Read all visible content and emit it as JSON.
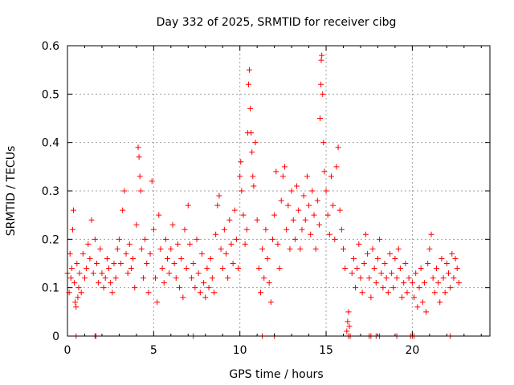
{
  "chart_data": {
    "type": "scatter",
    "title": "Day 332 of 2025, SRMTID for receiver cibg",
    "xlabel": "GPS time / hours",
    "ylabel": "SRMTID / TECUs",
    "xlim": [
      0,
      24.5
    ],
    "ylim": [
      0,
      0.6
    ],
    "x_ticks": [
      0,
      5,
      10,
      15,
      20
    ],
    "x_tick_labels": [
      "0",
      "5",
      "10",
      "15",
      "20"
    ],
    "y_ticks": [
      0,
      0.1,
      0.2,
      0.3,
      0.4,
      0.5,
      0.6
    ],
    "y_tick_labels": [
      "0",
      "0.1",
      "0.2",
      "0.3",
      "0.4",
      "0.5",
      "0.6"
    ],
    "grid": true,
    "marker": "+",
    "series": [
      {
        "name": "SRMTID",
        "color": "#ff0000",
        "points": [
          [
            0.0,
            0.13
          ],
          [
            0.1,
            0.09
          ],
          [
            0.15,
            0.17
          ],
          [
            0.2,
            0.12
          ],
          [
            0.25,
            0.14
          ],
          [
            0.3,
            0.22
          ],
          [
            0.35,
            0.26
          ],
          [
            0.4,
            0.11
          ],
          [
            0.45,
            0.07
          ],
          [
            0.5,
            0.06
          ],
          [
            0.55,
            0.15
          ],
          [
            0.6,
            0.08
          ],
          [
            0.65,
            0.1
          ],
          [
            0.7,
            0.13
          ],
          [
            0.8,
            0.09
          ],
          [
            0.9,
            0.17
          ],
          [
            1.0,
            0.12
          ],
          [
            1.1,
            0.14
          ],
          [
            1.2,
            0.19
          ],
          [
            1.3,
            0.16
          ],
          [
            1.4,
            0.24
          ],
          [
            1.5,
            0.13
          ],
          [
            1.6,
            0.2
          ],
          [
            1.7,
            0.15
          ],
          [
            1.8,
            0.11
          ],
          [
            1.9,
            0.18
          ],
          [
            2.0,
            0.13
          ],
          [
            2.1,
            0.1
          ],
          [
            2.2,
            0.12
          ],
          [
            2.3,
            0.16
          ],
          [
            2.4,
            0.14
          ],
          [
            2.5,
            0.11
          ],
          [
            2.6,
            0.09
          ],
          [
            2.7,
            0.15
          ],
          [
            2.8,
            0.12
          ],
          [
            2.9,
            0.18
          ],
          [
            3.0,
            0.2
          ],
          [
            3.1,
            0.15
          ],
          [
            3.2,
            0.26
          ],
          [
            3.3,
            0.3
          ],
          [
            3.4,
            0.17
          ],
          [
            3.5,
            0.13
          ],
          [
            3.6,
            0.19
          ],
          [
            3.7,
            0.14
          ],
          [
            3.8,
            0.16
          ],
          [
            3.9,
            0.1
          ],
          [
            4.0,
            0.23
          ],
          [
            4.1,
            0.39
          ],
          [
            4.15,
            0.37
          ],
          [
            4.2,
            0.33
          ],
          [
            4.25,
            0.3
          ],
          [
            4.3,
            0.18
          ],
          [
            4.4,
            0.12
          ],
          [
            4.5,
            0.2
          ],
          [
            4.6,
            0.15
          ],
          [
            4.7,
            0.09
          ],
          [
            4.8,
            0.17
          ],
          [
            4.9,
            0.32
          ],
          [
            5.0,
            0.22
          ],
          [
            5.1,
            0.12
          ],
          [
            5.2,
            0.07
          ],
          [
            5.3,
            0.25
          ],
          [
            5.4,
            0.18
          ],
          [
            5.5,
            0.14
          ],
          [
            5.6,
            0.11
          ],
          [
            5.7,
            0.2
          ],
          [
            5.8,
            0.16
          ],
          [
            5.9,
            0.13
          ],
          [
            6.0,
            0.18
          ],
          [
            6.1,
            0.23
          ],
          [
            6.2,
            0.15
          ],
          [
            6.3,
            0.12
          ],
          [
            6.4,
            0.19
          ],
          [
            6.5,
            0.1
          ],
          [
            6.6,
            0.16
          ],
          [
            6.7,
            0.08
          ],
          [
            6.8,
            0.22
          ],
          [
            6.9,
            0.14
          ],
          [
            7.0,
            0.27
          ],
          [
            7.1,
            0.19
          ],
          [
            7.2,
            0.12
          ],
          [
            7.3,
            0.15
          ],
          [
            7.4,
            0.1
          ],
          [
            7.5,
            0.2
          ],
          [
            7.6,
            0.13
          ],
          [
            7.7,
            0.09
          ],
          [
            7.8,
            0.17
          ],
          [
            7.9,
            0.11
          ],
          [
            8.0,
            0.08
          ],
          [
            8.1,
            0.14
          ],
          [
            8.2,
            0.1
          ],
          [
            8.3,
            0.16
          ],
          [
            8.4,
            0.12
          ],
          [
            8.5,
            0.09
          ],
          [
            8.6,
            0.21
          ],
          [
            8.7,
            0.27
          ],
          [
            8.8,
            0.29
          ],
          [
            8.9,
            0.18
          ],
          [
            9.0,
            0.14
          ],
          [
            9.1,
            0.22
          ],
          [
            9.2,
            0.17
          ],
          [
            9.3,
            0.12
          ],
          [
            9.4,
            0.24
          ],
          [
            9.5,
            0.19
          ],
          [
            9.6,
            0.15
          ],
          [
            9.7,
            0.26
          ],
          [
            9.8,
            0.2
          ],
          [
            9.9,
            0.14
          ],
          [
            10.0,
            0.33
          ],
          [
            10.05,
            0.36
          ],
          [
            10.1,
            0.3
          ],
          [
            10.2,
            0.25
          ],
          [
            10.3,
            0.19
          ],
          [
            10.4,
            0.22
          ],
          [
            10.45,
            0.42
          ],
          [
            10.5,
            0.52
          ],
          [
            10.55,
            0.55
          ],
          [
            10.6,
            0.47
          ],
          [
            10.65,
            0.42
          ],
          [
            10.7,
            0.38
          ],
          [
            10.75,
            0.33
          ],
          [
            10.8,
            0.31
          ],
          [
            10.9,
            0.4
          ],
          [
            11.0,
            0.24
          ],
          [
            11.1,
            0.14
          ],
          [
            11.2,
            0.09
          ],
          [
            11.3,
            0.18
          ],
          [
            11.4,
            0.12
          ],
          [
            11.5,
            0.22
          ],
          [
            11.6,
            0.16
          ],
          [
            11.7,
            0.11
          ],
          [
            11.8,
            0.07
          ],
          [
            11.9,
            0.2
          ],
          [
            12.0,
            0.25
          ],
          [
            12.1,
            0.34
          ],
          [
            12.2,
            0.19
          ],
          [
            12.3,
            0.14
          ],
          [
            12.4,
            0.28
          ],
          [
            12.5,
            0.33
          ],
          [
            12.6,
            0.35
          ],
          [
            12.7,
            0.22
          ],
          [
            12.8,
            0.27
          ],
          [
            12.9,
            0.18
          ],
          [
            13.0,
            0.3
          ],
          [
            13.1,
            0.24
          ],
          [
            13.2,
            0.2
          ],
          [
            13.3,
            0.31
          ],
          [
            13.4,
            0.26
          ],
          [
            13.5,
            0.18
          ],
          [
            13.6,
            0.22
          ],
          [
            13.7,
            0.29
          ],
          [
            13.8,
            0.24
          ],
          [
            13.9,
            0.33
          ],
          [
            14.0,
            0.27
          ],
          [
            14.1,
            0.21
          ],
          [
            14.2,
            0.3
          ],
          [
            14.3,
            0.25
          ],
          [
            14.4,
            0.18
          ],
          [
            14.5,
            0.28
          ],
          [
            14.6,
            0.23
          ],
          [
            14.65,
            0.45
          ],
          [
            14.7,
            0.52
          ],
          [
            14.72,
            0.57
          ],
          [
            14.75,
            0.58
          ],
          [
            14.8,
            0.5
          ],
          [
            14.85,
            0.4
          ],
          [
            14.9,
            0.34
          ],
          [
            15.0,
            0.3
          ],
          [
            15.1,
            0.25
          ],
          [
            15.2,
            0.21
          ],
          [
            15.3,
            0.33
          ],
          [
            15.4,
            0.27
          ],
          [
            15.5,
            0.2
          ],
          [
            15.6,
            0.35
          ],
          [
            15.7,
            0.39
          ],
          [
            15.8,
            0.26
          ],
          [
            15.9,
            0.22
          ],
          [
            16.0,
            0.18
          ],
          [
            16.1,
            0.14
          ],
          [
            16.2,
            0.01
          ],
          [
            16.25,
            0.03
          ],
          [
            16.3,
            0.05
          ],
          [
            16.35,
            0.02
          ],
          [
            16.4,
            0.0
          ],
          [
            16.5,
            0.13
          ],
          [
            16.6,
            0.16
          ],
          [
            16.7,
            0.1
          ],
          [
            16.8,
            0.14
          ],
          [
            16.9,
            0.19
          ],
          [
            17.0,
            0.12
          ],
          [
            17.1,
            0.09
          ],
          [
            17.2,
            0.15
          ],
          [
            17.3,
            0.21
          ],
          [
            17.4,
            0.17
          ],
          [
            17.5,
            0.12
          ],
          [
            17.6,
            0.08
          ],
          [
            17.7,
            0.18
          ],
          [
            17.8,
            0.14
          ],
          [
            17.9,
            0.11
          ],
          [
            18.0,
            0.16
          ],
          [
            18.1,
            0.2
          ],
          [
            18.2,
            0.13
          ],
          [
            18.3,
            0.1
          ],
          [
            18.4,
            0.15
          ],
          [
            18.5,
            0.12
          ],
          [
            18.6,
            0.09
          ],
          [
            18.7,
            0.17
          ],
          [
            18.8,
            0.13
          ],
          [
            18.9,
            0.1
          ],
          [
            19.0,
            0.16
          ],
          [
            19.1,
            0.12
          ],
          [
            19.2,
            0.18
          ],
          [
            19.3,
            0.14
          ],
          [
            19.4,
            0.08
          ],
          [
            19.5,
            0.11
          ],
          [
            19.6,
            0.15
          ],
          [
            19.7,
            0.09
          ],
          [
            19.8,
            0.12
          ],
          [
            20.0,
            0.11
          ],
          [
            20.1,
            0.08
          ],
          [
            20.2,
            0.13
          ],
          [
            20.3,
            0.06
          ],
          [
            20.4,
            0.1
          ],
          [
            20.5,
            0.14
          ],
          [
            20.6,
            0.07
          ],
          [
            20.7,
            0.11
          ],
          [
            20.8,
            0.05
          ],
          [
            20.9,
            0.15
          ],
          [
            21.0,
            0.18
          ],
          [
            21.1,
            0.21
          ],
          [
            21.2,
            0.12
          ],
          [
            21.3,
            0.09
          ],
          [
            21.4,
            0.14
          ],
          [
            21.5,
            0.11
          ],
          [
            21.6,
            0.07
          ],
          [
            21.7,
            0.16
          ],
          [
            21.8,
            0.12
          ],
          [
            21.9,
            0.09
          ],
          [
            22.0,
            0.15
          ],
          [
            22.1,
            0.13
          ],
          [
            22.2,
            0.1
          ],
          [
            22.3,
            0.17
          ],
          [
            22.4,
            0.12
          ],
          [
            22.5,
            0.16
          ],
          [
            22.6,
            0.14
          ],
          [
            22.7,
            0.11
          ],
          [
            0.5,
            0.0
          ],
          [
            1.6,
            0.0
          ],
          [
            1.65,
            0.0
          ],
          [
            7.3,
            0.0
          ],
          [
            11.3,
            0.0
          ],
          [
            12.0,
            0.0
          ],
          [
            16.3,
            0.0
          ],
          [
            17.5,
            0.0
          ],
          [
            17.6,
            0.0
          ],
          [
            17.9,
            0.0
          ],
          [
            18.1,
            0.0
          ],
          [
            19.1,
            0.0
          ],
          [
            19.9,
            0.0
          ],
          [
            20.0,
            0.0
          ],
          [
            20.1,
            0.0
          ],
          [
            22.2,
            0.0
          ]
        ]
      }
    ]
  }
}
